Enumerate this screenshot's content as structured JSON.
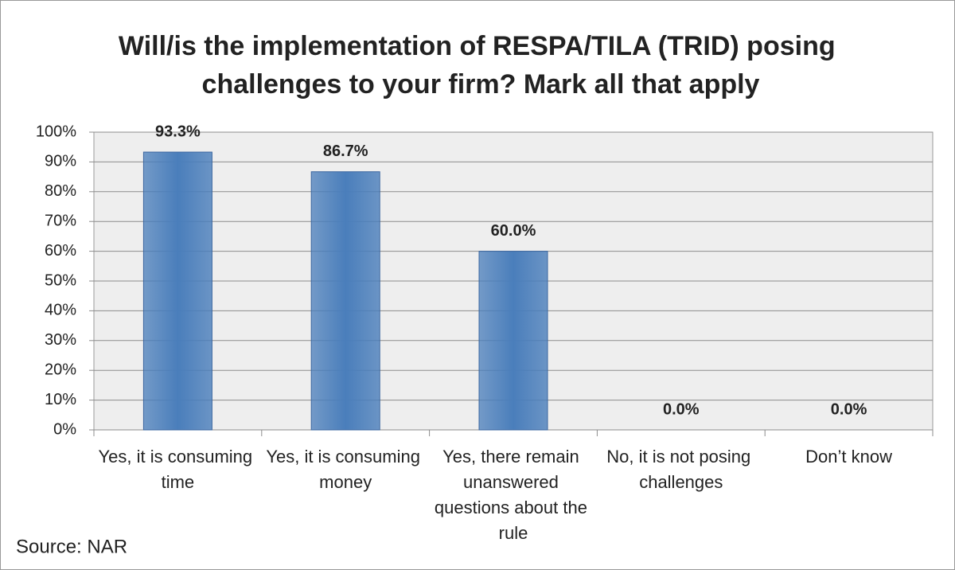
{
  "chart_data": {
    "type": "bar",
    "title": "Will/is the implementation of RESPA/TILA (TRID) posing challenges to your firm?  Mark all that apply",
    "categories": [
      "Yes, it is consuming time",
      "Yes, it is consuming money",
      "Yes, there remain unanswered questions about the rule",
      "No, it is not posing challenges",
      "Don’t know"
    ],
    "values": [
      93.3,
      86.7,
      60.0,
      0.0,
      0.0
    ],
    "value_labels": [
      "93.3%",
      "86.7%",
      "60.0%",
      "0.0%",
      "0.0%"
    ],
    "color": "#4a7ebb",
    "ylim": [
      0,
      100
    ],
    "yticks": [
      {
        "value": 0,
        "label": "0%"
      },
      {
        "value": 10,
        "label": "10%"
      },
      {
        "value": 20,
        "label": "20%"
      },
      {
        "value": 30,
        "label": "30%"
      },
      {
        "value": 40,
        "label": "40%"
      },
      {
        "value": 50,
        "label": "50%"
      },
      {
        "value": 60,
        "label": "60%"
      },
      {
        "value": 70,
        "label": "70%"
      },
      {
        "value": 80,
        "label": "80%"
      },
      {
        "value": 90,
        "label": "90%"
      },
      {
        "value": 100,
        "label": "100%"
      }
    ],
    "grid": true,
    "annotation": "Source: NAR"
  }
}
